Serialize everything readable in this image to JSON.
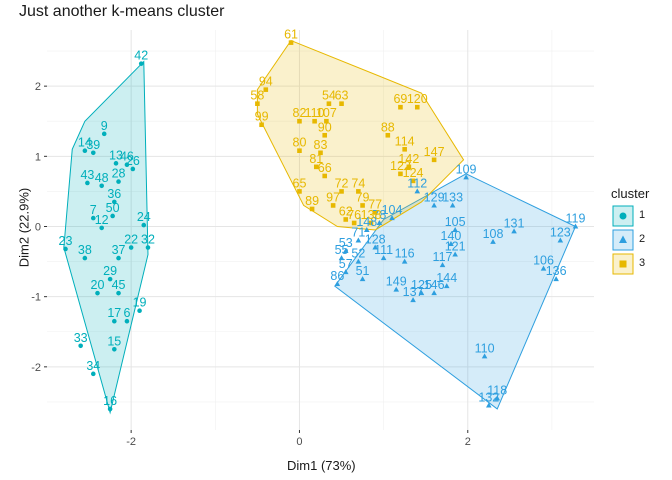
{
  "chart_data": {
    "type": "scatter",
    "title": "Just another k-means cluster",
    "xlabel": "Dim1 (73%)",
    "ylabel": "Dim2 (22.9%)",
    "xlim": [
      -3.0,
      3.5
    ],
    "ylim": [
      -2.9,
      2.8
    ],
    "x_ticks": [
      -2,
      0,
      2
    ],
    "y_ticks": [
      -2,
      -1,
      0,
      1,
      2
    ],
    "x_tick_labels": [
      "-2",
      "0",
      "2"
    ],
    "y_tick_labels": [
      "-2",
      "-1",
      "0",
      "1",
      "2"
    ],
    "grid": true,
    "legend": {
      "title": "cluster",
      "position": "right",
      "entries": [
        "1",
        "2",
        "3"
      ]
    },
    "colors": {
      "1": "#00AFBB",
      "2": "#2E9FDF",
      "3": "#E7B800"
    },
    "hulls": {
      "1": [
        [
          -1.85,
          2.35
        ],
        [
          -1.8,
          -0.4
        ],
        [
          -2.25,
          -2.65
        ],
        [
          -2.8,
          -0.3
        ],
        [
          -2.7,
          1.1
        ],
        [
          -2.55,
          1.5
        ]
      ],
      "2": [
        [
          1.98,
          0.75
        ],
        [
          3.28,
          0.0
        ],
        [
          2.35,
          -2.6
        ],
        [
          0.42,
          -0.85
        ],
        [
          1.0,
          0.1
        ]
      ],
      "3": [
        [
          -0.1,
          2.65
        ],
        [
          1.45,
          1.9
        ],
        [
          1.95,
          0.95
        ],
        [
          1.45,
          0.35
        ],
        [
          0.9,
          -0.05
        ],
        [
          0.45,
          0.0
        ],
        [
          0.05,
          0.3
        ],
        [
          -0.5,
          1.6
        ],
        [
          -0.5,
          1.95
        ]
      ]
    },
    "series": [
      {
        "name": "1",
        "marker": "circle",
        "points": [
          {
            "x": -1.88,
            "y": 2.32,
            "label": "42"
          },
          {
            "x": -2.32,
            "y": 1.32,
            "label": "9"
          },
          {
            "x": -2.55,
            "y": 1.08,
            "label": "14"
          },
          {
            "x": -2.45,
            "y": 1.05,
            "label": "39"
          },
          {
            "x": -2.18,
            "y": 0.9,
            "label": "13"
          },
          {
            "x": -2.05,
            "y": 0.88,
            "label": "46"
          },
          {
            "x": -1.98,
            "y": 0.82,
            "label": "26"
          },
          {
            "x": -2.52,
            "y": 0.62,
            "label": "43"
          },
          {
            "x": -2.35,
            "y": 0.58,
            "label": "48"
          },
          {
            "x": -2.15,
            "y": 0.64,
            "label": "28"
          },
          {
            "x": -2.2,
            "y": 0.35,
            "label": "36"
          },
          {
            "x": -2.45,
            "y": 0.12,
            "label": "7"
          },
          {
            "x": -2.35,
            "y": -0.02,
            "label": "12"
          },
          {
            "x": -2.22,
            "y": 0.15,
            "label": "50"
          },
          {
            "x": -1.85,
            "y": 0.02,
            "label": "24"
          },
          {
            "x": -2.78,
            "y": -0.32,
            "label": "23"
          },
          {
            "x": -2.55,
            "y": -0.45,
            "label": "38"
          },
          {
            "x": -2.15,
            "y": -0.45,
            "label": "37"
          },
          {
            "x": -2.0,
            "y": -0.3,
            "label": "22"
          },
          {
            "x": -1.8,
            "y": -0.3,
            "label": "32"
          },
          {
            "x": -2.25,
            "y": -0.75,
            "label": "29"
          },
          {
            "x": -2.4,
            "y": -0.95,
            "label": "20"
          },
          {
            "x": -2.15,
            "y": -0.95,
            "label": "45"
          },
          {
            "x": -1.9,
            "y": -1.2,
            "label": "19"
          },
          {
            "x": -2.2,
            "y": -1.35,
            "label": "17"
          },
          {
            "x": -2.05,
            "y": -1.35,
            "label": "6"
          },
          {
            "x": -2.6,
            "y": -1.7,
            "label": "33"
          },
          {
            "x": -2.2,
            "y": -1.75,
            "label": "15"
          },
          {
            "x": -2.45,
            "y": -2.1,
            "label": "34"
          },
          {
            "x": -2.25,
            "y": -2.6,
            "label": "16"
          }
        ]
      },
      {
        "name": "2",
        "marker": "triangle",
        "points": [
          {
            "x": 1.98,
            "y": 0.7,
            "label": "109"
          },
          {
            "x": 3.28,
            "y": 0.0,
            "label": "119"
          },
          {
            "x": 1.4,
            "y": 0.5,
            "label": "112"
          },
          {
            "x": 1.6,
            "y": 0.3,
            "label": "129"
          },
          {
            "x": 1.82,
            "y": 0.3,
            "label": "133"
          },
          {
            "x": 1.1,
            "y": 0.12,
            "label": "104"
          },
          {
            "x": 0.95,
            "y": 0.05,
            "label": "78"
          },
          {
            "x": 0.8,
            "y": -0.05,
            "label": "148"
          },
          {
            "x": 1.85,
            "y": -0.05,
            "label": "105"
          },
          {
            "x": 2.55,
            "y": -0.07,
            "label": "131"
          },
          {
            "x": 3.1,
            "y": -0.2,
            "label": "123"
          },
          {
            "x": 2.3,
            "y": -0.22,
            "label": "108"
          },
          {
            "x": 1.8,
            "y": -0.25,
            "label": "140"
          },
          {
            "x": 1.85,
            "y": -0.4,
            "label": "121"
          },
          {
            "x": 0.7,
            "y": -0.2,
            "label": "71"
          },
          {
            "x": 0.9,
            "y": -0.3,
            "label": "128"
          },
          {
            "x": 0.55,
            "y": -0.35,
            "label": "53"
          },
          {
            "x": 0.5,
            "y": -0.45,
            "label": "55"
          },
          {
            "x": 0.7,
            "y": -0.5,
            "label": "52"
          },
          {
            "x": 1.0,
            "y": -0.45,
            "label": "111"
          },
          {
            "x": 1.25,
            "y": -0.5,
            "label": "116"
          },
          {
            "x": 1.7,
            "y": -0.55,
            "label": "117"
          },
          {
            "x": 0.75,
            "y": -0.75,
            "label": "51"
          },
          {
            "x": 0.55,
            "y": -0.65,
            "label": "57"
          },
          {
            "x": 2.9,
            "y": -0.6,
            "label": "106"
          },
          {
            "x": 3.05,
            "y": -0.75,
            "label": "136"
          },
          {
            "x": 0.45,
            "y": -0.82,
            "label": "86"
          },
          {
            "x": 1.15,
            "y": -0.9,
            "label": "149"
          },
          {
            "x": 1.45,
            "y": -0.95,
            "label": "125"
          },
          {
            "x": 1.6,
            "y": -0.95,
            "label": "146"
          },
          {
            "x": 1.35,
            "y": -1.05,
            "label": "137"
          },
          {
            "x": 1.75,
            "y": -0.85,
            "label": "144"
          },
          {
            "x": 2.2,
            "y": -1.85,
            "label": "110"
          },
          {
            "x": 2.35,
            "y": -2.45,
            "label": "118"
          },
          {
            "x": 2.25,
            "y": -2.55,
            "label": "132"
          }
        ]
      },
      {
        "name": "3",
        "marker": "square",
        "points": [
          {
            "x": -0.1,
            "y": 2.62,
            "label": "61"
          },
          {
            "x": -0.4,
            "y": 1.95,
            "label": "94"
          },
          {
            "x": -0.5,
            "y": 1.75,
            "label": "58"
          },
          {
            "x": -0.45,
            "y": 1.45,
            "label": "99"
          },
          {
            "x": 0.35,
            "y": 1.75,
            "label": "54"
          },
          {
            "x": 0.5,
            "y": 1.75,
            "label": "63"
          },
          {
            "x": 1.4,
            "y": 1.7,
            "label": "120"
          },
          {
            "x": 1.2,
            "y": 1.7,
            "label": "69"
          },
          {
            "x": 0.0,
            "y": 1.5,
            "label": "82"
          },
          {
            "x": 0.18,
            "y": 1.5,
            "label": "110"
          },
          {
            "x": 0.32,
            "y": 1.5,
            "label": "107"
          },
          {
            "x": 0.3,
            "y": 1.3,
            "label": "90"
          },
          {
            "x": 1.05,
            "y": 1.3,
            "label": "88"
          },
          {
            "x": 1.25,
            "y": 1.1,
            "label": "114"
          },
          {
            "x": 0.0,
            "y": 1.08,
            "label": "80"
          },
          {
            "x": 0.25,
            "y": 1.05,
            "label": "83"
          },
          {
            "x": 0.2,
            "y": 0.85,
            "label": "81"
          },
          {
            "x": 0.3,
            "y": 0.72,
            "label": "66"
          },
          {
            "x": 1.6,
            "y": 0.95,
            "label": "147"
          },
          {
            "x": 1.3,
            "y": 0.85,
            "label": "142"
          },
          {
            "x": 1.2,
            "y": 0.75,
            "label": "122"
          },
          {
            "x": 1.35,
            "y": 0.65,
            "label": "124"
          },
          {
            "x": 0.0,
            "y": 0.5,
            "label": "65"
          },
          {
            "x": 0.5,
            "y": 0.5,
            "label": "72"
          },
          {
            "x": 0.7,
            "y": 0.5,
            "label": "74"
          },
          {
            "x": 0.15,
            "y": 0.25,
            "label": "89"
          },
          {
            "x": 0.4,
            "y": 0.3,
            "label": "97"
          },
          {
            "x": 0.75,
            "y": 0.3,
            "label": "79"
          },
          {
            "x": 0.9,
            "y": 0.2,
            "label": "77"
          },
          {
            "x": 0.55,
            "y": 0.1,
            "label": "62"
          },
          {
            "x": 0.65,
            "y": 0.05,
            "label": "76"
          },
          {
            "x": 0.85,
            "y": 0.05,
            "label": "138"
          }
        ]
      }
    ]
  }
}
